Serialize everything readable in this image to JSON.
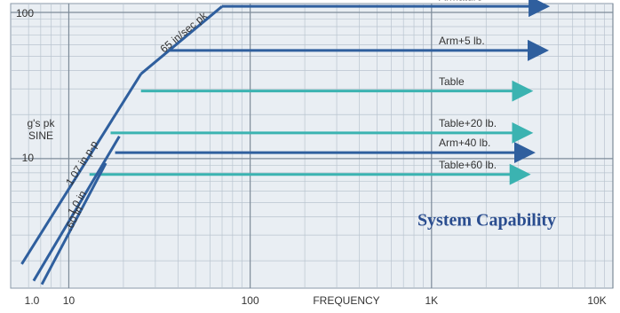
{
  "chart_data": {
    "type": "line",
    "title": "System Capability",
    "x_label": "FREQUENCY",
    "y_label": "g's pk SINE",
    "annotation": "1.0",
    "log_x": true,
    "log_y": true,
    "grid": true,
    "xlim": [
      5,
      10000
    ],
    "ylim": [
      1.3,
      115
    ],
    "xticks": [
      10,
      100,
      {
        "value": 1000,
        "label": "1K"
      },
      {
        "value": 10000,
        "label": "10K"
      }
    ],
    "yticks": [
      10,
      100
    ],
    "series": [
      {
        "name": "Armature",
        "color": "#2f5f9e",
        "kind": "level",
        "x": [
          70,
          4200
        ],
        "values": [
          110,
          110
        ]
      },
      {
        "name": "Arm+5 lb.",
        "color": "#2f5f9e",
        "kind": "level",
        "x": [
          35,
          4150
        ],
        "values": [
          55,
          55
        ]
      },
      {
        "name": "Table",
        "color": "#3bb3b1",
        "kind": "level",
        "x": [
          25,
          3400
        ],
        "values": [
          29,
          29
        ]
      },
      {
        "name": "Table+20 lb.",
        "color": "#3bb3b1",
        "kind": "level",
        "x": [
          17,
          3400
        ],
        "values": [
          15,
          15
        ]
      },
      {
        "name": "Arm+40 lb.",
        "color": "#2f5f9e",
        "kind": "level",
        "x": [
          18,
          3500
        ],
        "values": [
          11,
          11
        ]
      },
      {
        "name": "Table+60 lb.",
        "color": "#3bb3b1",
        "kind": "level",
        "x": [
          13,
          3300
        ],
        "values": [
          7.8,
          7.8
        ]
      },
      {
        "name": "1.07 in p-p",
        "color": "#2f5f9e",
        "kind": "slope",
        "x": [
          5.5,
          25
        ],
        "values": [
          1.9,
          38
        ]
      },
      {
        "name": "65 in/sec pk",
        "color": "#2f5f9e",
        "kind": "slope",
        "x": [
          25,
          70
        ],
        "values": [
          38,
          110
        ]
      },
      {
        "name": "1.0 in",
        "color": "#2f5f9e",
        "kind": "slope",
        "x": [
          6.4,
          19
        ],
        "values": [
          1.46,
          14.2
        ]
      },
      {
        "name": ".60 in",
        "color": "#2f5f9e",
        "kind": "slope",
        "x": [
          7.1,
          16
        ],
        "values": [
          1.38,
          9.3
        ]
      }
    ]
  }
}
